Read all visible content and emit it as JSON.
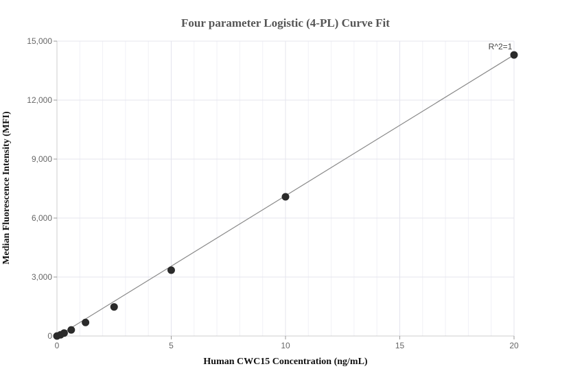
{
  "chart_data": {
    "type": "scatter",
    "title": "Four parameter Logistic (4-PL) Curve Fit",
    "xlabel": "Human CWC15 Concentration (ng/mL)",
    "ylabel": "Median Fluorescence Intensity (MFI)",
    "xlim": [
      0,
      20
    ],
    "ylim": [
      0,
      15000
    ],
    "x_ticks": [
      0,
      5,
      10,
      15,
      20
    ],
    "x_tick_labels": [
      "0",
      "5",
      "10",
      "15",
      "20"
    ],
    "y_ticks": [
      0,
      3000,
      6000,
      9000,
      12000,
      15000
    ],
    "y_tick_labels": [
      "0",
      "3,000",
      "6,000",
      "9,000",
      "12,000",
      "15,000"
    ],
    "grid": true,
    "series": [
      {
        "x": [
          0,
          0.156,
          0.3125,
          0.625,
          1.25,
          2.5,
          5,
          10,
          20
        ],
        "values": [
          0,
          60,
          150,
          310,
          690,
          1480,
          3350,
          7080,
          14300
        ]
      }
    ],
    "fit_line": {
      "x": [
        0,
        20
      ],
      "values": [
        -30,
        14300
      ]
    },
    "annotations": [
      {
        "text": "R^2=1",
        "x": 20,
        "y": 14300
      }
    ],
    "colors": {
      "points": "#2b2b2b",
      "fit_line": "#888888",
      "grid": "#e4e4ee"
    }
  }
}
